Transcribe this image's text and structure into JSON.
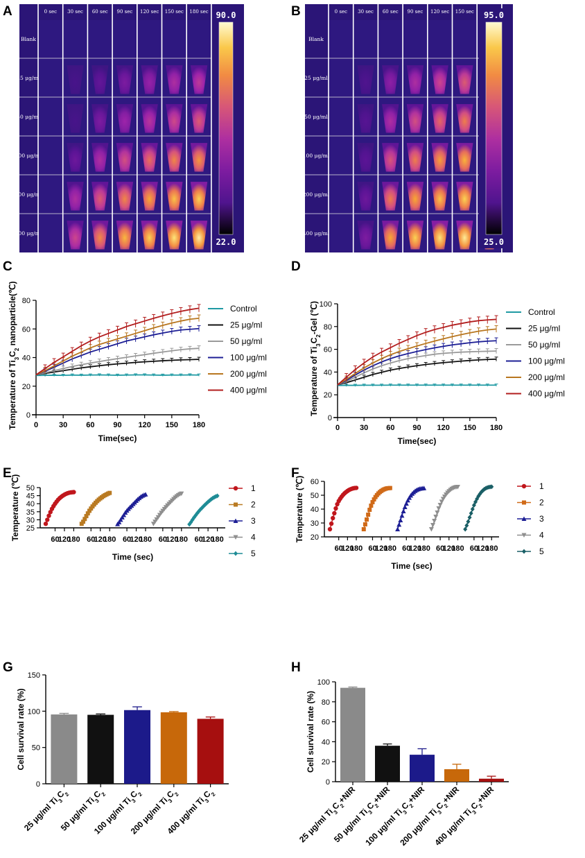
{
  "panels": {
    "A": "A",
    "B": "B",
    "C": "C",
    "D": "D",
    "E": "E",
    "F": "F",
    "G": "G",
    "H": "H"
  },
  "colors": {
    "thermal_bg": "#2b1577",
    "series": [
      "#1f9aa3",
      "#111111",
      "#9a9a9a",
      "#1d1f95",
      "#b8761f",
      "#b21d1d"
    ],
    "cycle": [
      "#c0161c",
      "#b97a22",
      "#1d1f95",
      "#8f8f8f",
      "#1f8c96"
    ],
    "cycle_f": [
      "#c0161c",
      "#d06a18",
      "#1d1f95",
      "#8f8f8f",
      "#1a5f66"
    ],
    "bars_g": [
      "#8a8a8a",
      "#111111",
      "#1c1a8a",
      "#c7680a",
      "#a60f0f"
    ],
    "bars_h": [
      "#8a8a8a",
      "#111111",
      "#1c1a8a",
      "#c7680a",
      "#a60f0f"
    ]
  },
  "thermal": {
    "times": [
      "0 sec",
      "30 sec",
      "60 sec",
      "90 sec",
      "120 sec",
      "150 sec",
      "180 sec"
    ],
    "rows": [
      "Blank",
      "25 μg/ml",
      "50 μg/ml",
      "100 μg/ml",
      "200 μg/ml",
      "400 μg/ml"
    ],
    "A": {
      "max": "90.0",
      "min": "22.0",
      "levels": [
        [
          0,
          0,
          0,
          0,
          0,
          0,
          0
        ],
        [
          0,
          0.12,
          0.22,
          0.3,
          0.38,
          0.45,
          0.5
        ],
        [
          0,
          0.12,
          0.3,
          0.4,
          0.48,
          0.56,
          0.62
        ],
        [
          0,
          0.25,
          0.45,
          0.58,
          0.68,
          0.74,
          0.78
        ],
        [
          0,
          0.45,
          0.62,
          0.74,
          0.82,
          0.87,
          0.9
        ],
        [
          0,
          0.55,
          0.75,
          0.85,
          0.9,
          0.94,
          0.97
        ]
      ]
    },
    "B": {
      "max": "95.0",
      "min": "25.0",
      "levels": [
        [
          0,
          0,
          0,
          0,
          0,
          0,
          0
        ],
        [
          0,
          0.15,
          0.35,
          0.45,
          0.55,
          0.62,
          0.66
        ],
        [
          0,
          0.18,
          0.45,
          0.58,
          0.66,
          0.72,
          0.76
        ],
        [
          0,
          0.2,
          0.6,
          0.72,
          0.8,
          0.84,
          0.87
        ],
        [
          0,
          0.25,
          0.72,
          0.82,
          0.87,
          0.9,
          0.92
        ],
        [
          0,
          0.3,
          0.82,
          0.9,
          0.94,
          0.96,
          0.98
        ]
      ]
    }
  },
  "chart_data": [
    {
      "panel": "C",
      "type": "line",
      "title": "",
      "xlabel": "Time(sec)",
      "ylabel": "Temperature of Ti3C2 nanoparticle(℃)",
      "ylabel_parts": [
        "Temperature of Ti",
        "3",
        "C",
        "2",
        " nanoparticle(℃)"
      ],
      "xlim": [
        0,
        180
      ],
      "ylim": [
        0,
        80
      ],
      "xticks": [
        "0",
        "30",
        "60",
        "90",
        "120",
        "150",
        "180"
      ],
      "yticks": [
        "0",
        "20",
        "40",
        "60",
        "80"
      ],
      "x": [
        0,
        10,
        20,
        30,
        40,
        50,
        60,
        70,
        80,
        90,
        100,
        110,
        120,
        130,
        140,
        150,
        160,
        170,
        180
      ],
      "series": [
        {
          "name": "Control",
          "values": [
            25.5,
            25.6,
            25.7,
            25.6,
            25.8,
            25.7,
            25.8,
            25.9,
            25.8,
            25.7,
            25.8,
            25.9,
            25.9,
            25.8,
            25.7,
            25.8,
            25.8,
            25.9,
            25.8
          ]
        },
        {
          "name": "25 μg/ml",
          "values": [
            26,
            27,
            28,
            29,
            30,
            31,
            31.8,
            32.6,
            33.3,
            33.9,
            34.4,
            35,
            35.4,
            35.8,
            36.2,
            36.5,
            36.8,
            37,
            37.2
          ]
        },
        {
          "name": "50 μg/ml",
          "values": [
            26,
            27.5,
            29,
            30.5,
            32,
            33.3,
            34.5,
            35.6,
            36.7,
            37.7,
            38.7,
            39.7,
            40.6,
            41.6,
            42.5,
            43.4,
            44.2,
            44.8,
            45.2
          ]
        },
        {
          "name": "100 μg/ml",
          "values": [
            26,
            28.5,
            31.5,
            34.5,
            37.5,
            40,
            42.5,
            44.5,
            46.5,
            48.5,
            50.5,
            52,
            53.5,
            55,
            56.3,
            57.5,
            58.5,
            59,
            59.5
          ]
        },
        {
          "name": "200 μg/ml",
          "values": [
            26,
            29,
            32.5,
            36,
            39.5,
            42.5,
            45.5,
            48,
            50,
            52,
            54,
            56,
            58,
            60,
            61.8,
            63.5,
            65,
            66.3,
            67
          ]
        },
        {
          "name": "400 μg/ml",
          "values": [
            26,
            30.5,
            35,
            39,
            43,
            47,
            50.5,
            53.5,
            56,
            58.5,
            61,
            63,
            65,
            67,
            68.8,
            70.5,
            72,
            73.3,
            74.3
          ]
        }
      ]
    },
    {
      "panel": "D",
      "type": "line",
      "title": "",
      "xlabel": "Time(sec)",
      "ylabel": "Temperature of Ti3C2-Gel (℃)",
      "ylabel_parts": [
        "Temperature of Ti",
        "3",
        "C",
        "2",
        "-Gel (℃)"
      ],
      "xlim": [
        0,
        180
      ],
      "ylim": [
        0,
        100
      ],
      "xticks": [
        "0",
        "30",
        "60",
        "90",
        "120",
        "150",
        "180"
      ],
      "yticks": [
        "0",
        "20",
        "40",
        "60",
        "80",
        "100"
      ],
      "x": [
        0,
        10,
        20,
        30,
        40,
        50,
        60,
        70,
        80,
        90,
        100,
        110,
        120,
        130,
        140,
        150,
        160,
        170,
        180
      ],
      "series": [
        {
          "name": "Control",
          "values": [
            25.5,
            25.6,
            25.6,
            25.7,
            25.7,
            25.7,
            25.8,
            25.8,
            25.8,
            25.8,
            25.8,
            25.8,
            25.8,
            25.8,
            25.8,
            25.8,
            25.8,
            25.8,
            25.8
          ]
        },
        {
          "name": "25 μg/ml",
          "values": [
            26,
            28,
            30.5,
            33,
            35.5,
            37.5,
            39.5,
            41,
            42.3,
            43.5,
            44.6,
            45.5,
            46.3,
            47,
            47.7,
            48.3,
            48.8,
            49.2,
            49.5
          ]
        },
        {
          "name": "50 μg/ml",
          "values": [
            26,
            29,
            33,
            37,
            40.5,
            43.5,
            46,
            48.2,
            50,
            51.5,
            52.8,
            54,
            54.8,
            55.4,
            55.9,
            56.2,
            56.5,
            56.7,
            56.9
          ]
        },
        {
          "name": "100 μg/ml",
          "values": [
            26,
            30,
            35,
            39.5,
            43.5,
            47,
            50,
            52.5,
            54.6,
            56.5,
            58.2,
            59.8,
            61.2,
            62.5,
            63.5,
            64.5,
            65.3,
            65.9,
            66.3
          ]
        },
        {
          "name": "200 μg/ml",
          "values": [
            26,
            31,
            36.5,
            41.5,
            46,
            50,
            53.5,
            56.5,
            59,
            61.5,
            63.8,
            66,
            68,
            70,
            71.8,
            73.5,
            75,
            76.2,
            77
          ]
        },
        {
          "name": "400 μg/ml",
          "values": [
            26,
            33,
            40,
            46,
            51.5,
            56,
            60,
            64,
            67.5,
            71,
            74,
            76.5,
            78.5,
            80.5,
            82,
            83.5,
            84.6,
            85.3,
            85.8
          ]
        }
      ]
    },
    {
      "panel": "E",
      "type": "line",
      "title": "",
      "xlabel": "Time (sec)",
      "ylabel": "Temperature (℃)",
      "xlim": [
        0,
        960
      ],
      "ylim": [
        25,
        50
      ],
      "xticks": [
        "60",
        "120",
        "180",
        "60",
        "120",
        "180",
        "60",
        "120",
        "180",
        "60",
        "120",
        "180",
        "60",
        "120",
        "180"
      ],
      "yticks": [
        "25",
        "30",
        "35",
        "40",
        "45",
        "50"
      ],
      "t": [
        0,
        10,
        20,
        30,
        40,
        50,
        60,
        70,
        80,
        90,
        100,
        110,
        120,
        130,
        140,
        150,
        160,
        170,
        180
      ],
      "series": [
        {
          "name": "1",
          "values": [
            27.5,
            30,
            32.5,
            34.8,
            36.8,
            38.5,
            40,
            41.3,
            42.5,
            43.5,
            44.3,
            45,
            45.6,
            46.1,
            46.5,
            46.8,
            47,
            47.1,
            47.2
          ]
        },
        {
          "name": "2",
          "values": [
            27.5,
            28.8,
            30.5,
            32.3,
            34,
            35.6,
            37,
            38.3,
            39.5,
            40.6,
            41.6,
            42.5,
            43.3,
            44,
            44.7,
            45.3,
            45.8,
            46.3,
            46.7
          ]
        },
        {
          "name": "3",
          "values": [
            27.3,
            28.5,
            30,
            31.5,
            33,
            34.5,
            35.7,
            36.8,
            37.8,
            38.8,
            39.8,
            40.8,
            41.8,
            42.8,
            43.6,
            44.4,
            45,
            45.5,
            45.8
          ]
        },
        {
          "name": "4",
          "values": [
            27.5,
            28.8,
            30.2,
            31.6,
            33,
            34.3,
            35.5,
            36.7,
            37.8,
            38.9,
            39.9,
            40.9,
            41.9,
            42.9,
            43.8,
            44.6,
            45.3,
            45.9,
            46.3
          ]
        },
        {
          "name": "5",
          "values": [
            27.2,
            28.5,
            30,
            31.4,
            32.7,
            34,
            35.2,
            36.3,
            37.3,
            38.3,
            39.3,
            40.2,
            41.1,
            41.9,
            42.7,
            43.4,
            44,
            44.5,
            44.9
          ]
        }
      ]
    },
    {
      "panel": "F",
      "type": "line",
      "title": "",
      "xlabel": "Time (sec)",
      "ylabel": "Temperature (℃)",
      "xlim": [
        0,
        960
      ],
      "ylim": [
        20,
        60
      ],
      "xticks": [
        "60",
        "120",
        "180",
        "60",
        "120",
        "180",
        "60",
        "120",
        "180",
        "60",
        "120",
        "180",
        "60",
        "120",
        "180"
      ],
      "yticks": [
        "20",
        "30",
        "40",
        "50",
        "60"
      ],
      "t": [
        0,
        10,
        20,
        30,
        40,
        50,
        60,
        70,
        80,
        90,
        100,
        110,
        120,
        130,
        140,
        150,
        160,
        170,
        180
      ],
      "series": [
        {
          "name": "1",
          "values": [
            25.5,
            29.5,
            33.5,
            37,
            40.5,
            43.5,
            45.8,
            47.5,
            49,
            50.3,
            51.4,
            52.3,
            53.1,
            53.8,
            54.3,
            54.7,
            55,
            55.2,
            55.3
          ]
        },
        {
          "name": "2",
          "values": [
            25.5,
            29,
            32.5,
            36,
            39.5,
            42.5,
            45,
            47,
            48.7,
            50.1,
            51.3,
            52.3,
            53.1,
            53.8,
            54.3,
            54.7,
            55,
            55.1,
            55.2
          ]
        },
        {
          "name": "3",
          "values": [
            25.5,
            28.8,
            32,
            35.3,
            38.5,
            41.5,
            44,
            46.3,
            48.2,
            49.8,
            51.1,
            52.2,
            53.1,
            53.8,
            54.3,
            54.7,
            54.9,
            55,
            55.1
          ]
        },
        {
          "name": "4",
          "values": [
            25.5,
            28.5,
            31.5,
            34.5,
            37.5,
            40.5,
            43,
            45.3,
            47.3,
            49,
            50.5,
            51.8,
            52.9,
            53.8,
            54.6,
            55.2,
            55.6,
            55.9,
            56
          ]
        },
        {
          "name": "5",
          "values": [
            25.5,
            28.2,
            31,
            34,
            37,
            40,
            42.8,
            45.2,
            47.4,
            49.3,
            50.9,
            52.3,
            53.4,
            54.3,
            55,
            55.5,
            55.8,
            56,
            56.1
          ]
        }
      ]
    },
    {
      "panel": "G",
      "type": "bar",
      "title": "",
      "xlabel": "",
      "ylabel": "Cell survival rate (%)",
      "ylim": [
        0,
        150
      ],
      "yticks": [
        "0",
        "50",
        "100",
        "150"
      ],
      "categories": [
        "25 μg/ml Ti3C2",
        "50 μg/ml Ti3C2",
        "100 μg/ml Ti3C2",
        "200 μg/ml Ti3C2",
        "400 μg/ml Ti3C2"
      ],
      "category_prefix": [
        "25 μg/ml Ti",
        "50 μg/ml Ti",
        "100 μg/ml Ti",
        "200 μg/ml Ti",
        "400 μg/ml Ti"
      ],
      "category_suffix": [
        "",
        "",
        "",
        "",
        ""
      ],
      "values": [
        95.5,
        95,
        101.5,
        98.5,
        89.5
      ],
      "errors": [
        1.5,
        1.2,
        4.5,
        1.0,
        2.5
      ]
    },
    {
      "panel": "H",
      "type": "bar",
      "title": "",
      "xlabel": "",
      "ylabel": "Cell survival rate (%)",
      "ylim": [
        0,
        100
      ],
      "yticks": [
        "0",
        "20",
        "40",
        "60",
        "80",
        "100"
      ],
      "categories": [
        "25 μg/ml Ti3C2+NIR",
        "50 μg/ml Ti3C2+NIR",
        "100 μg/ml Ti3C2+NIR",
        "200 μg/ml Ti3C2+NIR",
        "400 μg/ml Ti3C2+NIR"
      ],
      "category_prefix": [
        "25 μg/ml Ti",
        "50 μg/ml Ti",
        "100 μg/ml Ti",
        "200 μg/ml Ti",
        "400 μg/ml Ti"
      ],
      "category_suffix": [
        "+NIR",
        "+NIR",
        "+NIR",
        "+NIR",
        "+NIR"
      ],
      "values": [
        94,
        36,
        27,
        12.5,
        3
      ],
      "errors": [
        0.8,
        1.8,
        6,
        5,
        2.5
      ]
    }
  ]
}
